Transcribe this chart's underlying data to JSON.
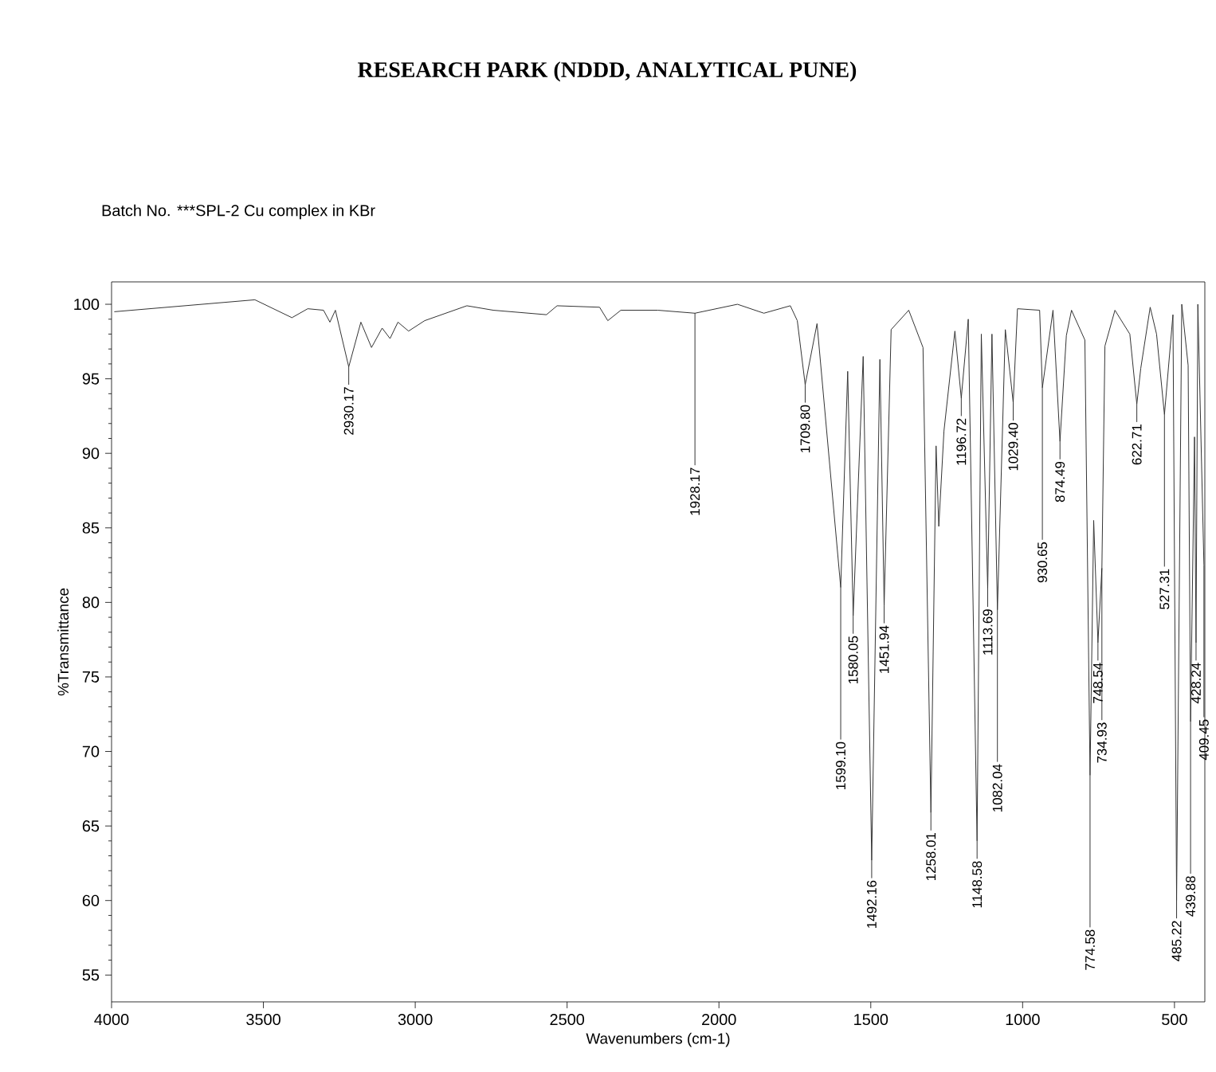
{
  "chart_data": {
    "type": "line",
    "title": "RESEARCH PARK (NDDD, ANALYTICAL PUNE)",
    "subtitle": "Batch No.   ***SPL-2 Cu complex in KBr",
    "xlabel": "Wavenumbers (cm-1)",
    "ylabel": "%Transmittance",
    "color": "#333333",
    "x": [
      3991,
      3528,
      3406,
      3354,
      3302,
      3281,
      3263,
      3219,
      3179,
      3144,
      3109,
      3083,
      3057,
      3022,
      2969,
      2830,
      2743,
      2568,
      2533,
      2393,
      2366,
      2323,
      2201,
      2079,
      1939,
      1852,
      1765,
      1742,
      1716,
      1677,
      1599,
      1576,
      1558,
      1525,
      1497,
      1470,
      1456,
      1433,
      1375,
      1328,
      1302,
      1285,
      1276,
      1259,
      1223,
      1202,
      1179,
      1150,
      1136,
      1115,
      1101,
      1083,
      1057,
      1031,
      1017,
      944,
      935,
      900,
      877,
      856,
      839,
      795,
      778,
      766,
      752,
      739,
      729,
      696,
      647,
      624,
      611,
      580,
      559,
      533,
      505,
      493,
      476,
      455,
      447,
      434,
      429,
      423,
      403
    ],
    "values": [
      99.5,
      100.3,
      99.1,
      99.7,
      99.6,
      98.8,
      99.6,
      95.8,
      98.8,
      97.1,
      98.4,
      97.7,
      98.8,
      98.2,
      98.9,
      99.9,
      99.6,
      99.3,
      99.9,
      99.8,
      98.9,
      99.6,
      99.6,
      99.4,
      100,
      99.4,
      99.9,
      98.9,
      94.6,
      98.7,
      81.0,
      95.5,
      79.1,
      96.5,
      62.7,
      96.3,
      79.8,
      98.3,
      99.6,
      97.1,
      65.9,
      90.5,
      85.1,
      91.5,
      98.2,
      93.7,
      99.0,
      64.0,
      98.0,
      80.9,
      98.0,
      79.5,
      98.3,
      93.4,
      99.7,
      99.6,
      94.4,
      99.6,
      90.8,
      97.9,
      99.6,
      97.6,
      68.4,
      85.5,
      77.3,
      82.3,
      97.2,
      99.6,
      98.0,
      93.3,
      95.7,
      99.8,
      98.0,
      92.6,
      99.3,
      60.0,
      100,
      95.9,
      72.0,
      91.1,
      77.3,
      100,
      82.5
    ],
    "xlim": [
      4000,
      400
    ],
    "ylim": [
      53.2,
      101.5
    ],
    "xticks": [
      4000,
      3500,
      3000,
      2500,
      2000,
      1500,
      1000,
      500
    ],
    "yticks": [
      55,
      60,
      65,
      70,
      75,
      80,
      85,
      90,
      95,
      100
    ],
    "annotations": [
      {
        "text": "2930.17",
        "x": 3219,
        "y": 95.8
      },
      {
        "text": "1928.17",
        "x": 2079,
        "y": 99.4
      },
      {
        "text": "1709.80",
        "x": 1716,
        "y": 94.6
      },
      {
        "text": "1599.10",
        "x": 1599,
        "y": 81.0
      },
      {
        "text": "1580.05",
        "x": 1558,
        "y": 79.1
      },
      {
        "text": "1492.16",
        "x": 1497,
        "y": 62.7
      },
      {
        "text": "1451.94",
        "x": 1456,
        "y": 79.8
      },
      {
        "text": "1258.01",
        "x": 1302,
        "y": 65.9
      },
      {
        "text": "1196.72",
        "x": 1202,
        "y": 93.7
      },
      {
        "text": "1148.58",
        "x": 1150,
        "y": 64.0
      },
      {
        "text": "1113.69",
        "x": 1115,
        "y": 80.9
      },
      {
        "text": "1082.04",
        "x": 1083,
        "y": 79.5
      },
      {
        "text": "1029.40",
        "x": 1031,
        "y": 93.4
      },
      {
        "text": "930.65",
        "x": 935,
        "y": 94.4
      },
      {
        "text": "874.49",
        "x": 877,
        "y": 90.8
      },
      {
        "text": "774.58",
        "x": 778,
        "y": 68.4
      },
      {
        "text": "748.54",
        "x": 752,
        "y": 77.3
      },
      {
        "text": "734.93",
        "x": 739,
        "y": 82.3
      },
      {
        "text": "622.71",
        "x": 624,
        "y": 93.3
      },
      {
        "text": "527.31",
        "x": 533,
        "y": 92.6
      },
      {
        "text": "485.22",
        "x": 493,
        "y": 60.0
      },
      {
        "text": "439.88",
        "x": 447,
        "y": 72.0
      },
      {
        "text": "428.24",
        "x": 429,
        "y": 77.3
      },
      {
        "text": "409.45",
        "x": 403,
        "y": 82.5
      }
    ]
  }
}
